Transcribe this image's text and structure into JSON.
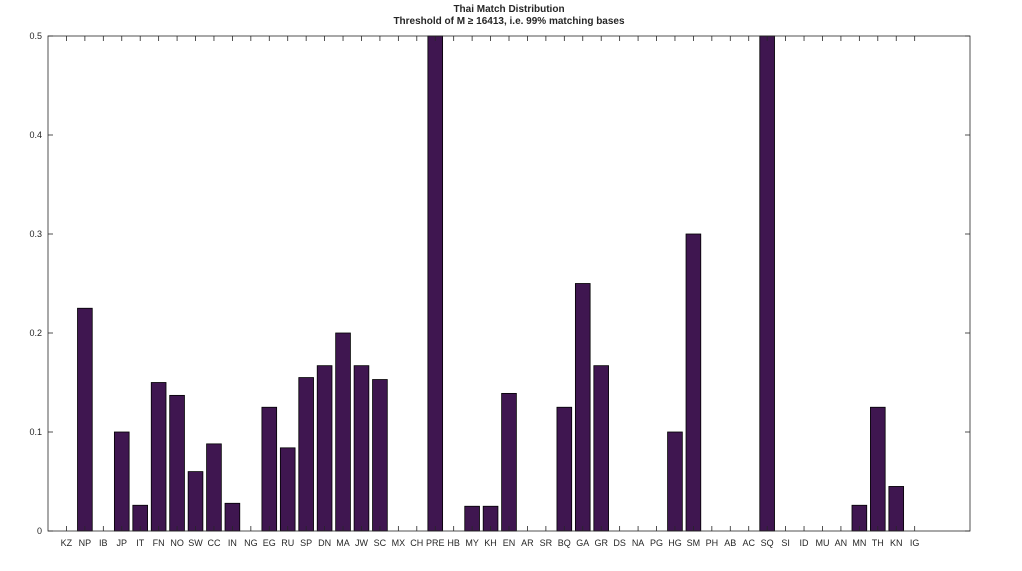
{
  "chart_data": {
    "type": "bar",
    "title": "Thai Match Distribution",
    "subtitle": "Threshold of M ≥ 16413, i.e. 99% matching bases",
    "xlabel": "",
    "ylabel": "",
    "ylim": [
      0,
      0.5
    ],
    "xlim": [
      0,
      50
    ],
    "yticks": [
      "0",
      "0.1",
      "0.2",
      "0.3",
      "0.4",
      "0.5"
    ],
    "grid": false,
    "bar_color": "#3f1650",
    "categories": [
      "KZ",
      "NP",
      "IB",
      "JP",
      "IT",
      "FN",
      "NO",
      "SW",
      "CC",
      "IN",
      "NG",
      "EG",
      "RU",
      "SP",
      "DN",
      "MA",
      "JW",
      "SC",
      "MX",
      "CH",
      "PRE",
      "HB",
      "MY",
      "KH",
      "EN",
      "AR",
      "SR",
      "BQ",
      "GA",
      "GR",
      "DS",
      "NA",
      "PG",
      "HG",
      "SM",
      "PH",
      "AB",
      "AC",
      "SQ",
      "SI",
      "ID",
      "MU",
      "AN",
      "MN",
      "TH",
      "KN",
      "IG"
    ],
    "values": [
      0,
      0.225,
      0,
      0.1,
      0.026,
      0.15,
      0.137,
      0.06,
      0.088,
      0.028,
      0,
      0.125,
      0.084,
      0.155,
      0.167,
      0.2,
      0.167,
      0.153,
      0,
      0,
      0.5,
      0,
      0.025,
      0.025,
      0.139,
      0,
      0,
      0.125,
      0.25,
      0.167,
      0,
      0,
      0,
      0.1,
      0.3,
      0,
      0,
      0,
      0.5,
      0,
      0,
      0,
      0,
      0.026,
      0.125,
      0.045,
      0
    ]
  }
}
